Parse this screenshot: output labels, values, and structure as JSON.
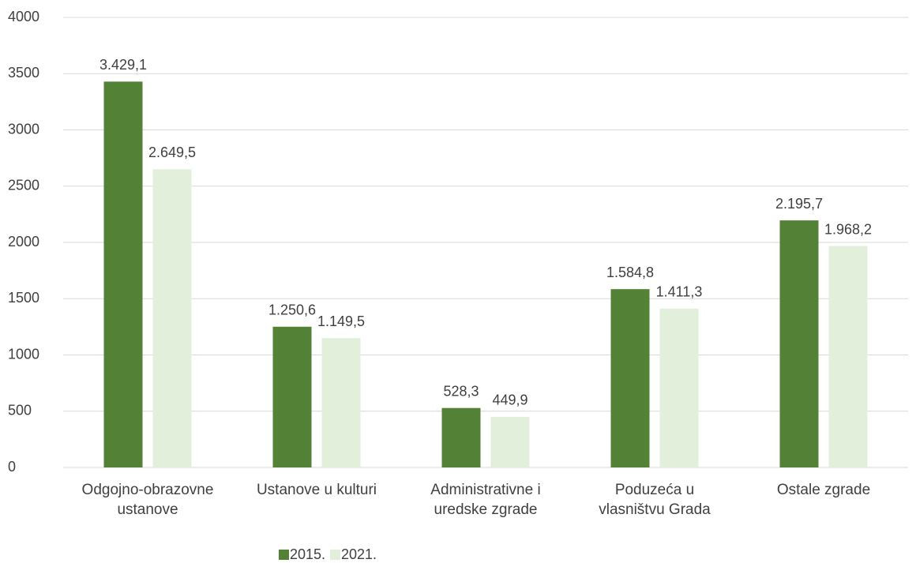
{
  "chart_data": {
    "type": "bar",
    "categories": [
      "Odgojno-obrazovne\nustanove",
      "Ustanove u kulturi",
      "Administrativne i\nuredske zgrade",
      "Poduzeća u\nvlasništvu Grada",
      "Ostale zgrade"
    ],
    "series": [
      {
        "name": "2015.",
        "color": "#538135",
        "values": [
          3429.1,
          1250.6,
          528.3,
          1584.8,
          2195.7
        ],
        "value_labels": [
          "3.429,1",
          "1.250,6",
          "528,3",
          "1.584,8",
          "2.195,7"
        ]
      },
      {
        "name": "2021.",
        "color": "#e2efda",
        "values": [
          2649.5,
          1149.5,
          449.9,
          1411.3,
          1968.2
        ],
        "value_labels": [
          "2.649,5",
          "1.149,5",
          "449,9",
          "1.411,3",
          "1.968,2"
        ]
      }
    ],
    "ylim": [
      0,
      4000
    ],
    "yticks": [
      0,
      500,
      1000,
      1500,
      2000,
      2500,
      3000,
      3500,
      4000
    ],
    "grid": true,
    "legend": "bottom"
  }
}
